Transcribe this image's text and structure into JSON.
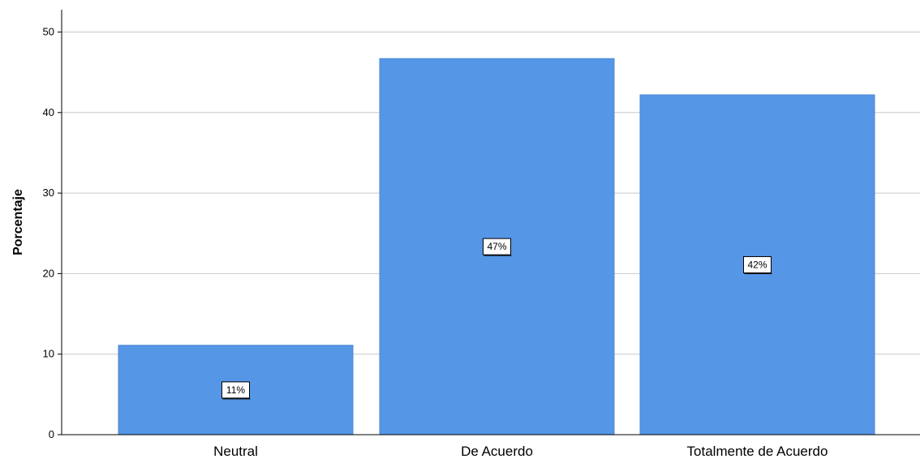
{
  "chart_data": {
    "type": "bar",
    "categories": [
      "Neutral",
      "De Acuerdo",
      "Totalmente de Acuerdo"
    ],
    "values": [
      11.1,
      46.7,
      42.2
    ],
    "data_labels": [
      "11%",
      "47%",
      "42%"
    ],
    "ylabel": "Porcentaje",
    "xlabel": "",
    "ylim": [
      0,
      52.5
    ],
    "yticks": [
      0,
      10,
      20,
      30,
      40,
      50
    ],
    "grid": true,
    "colors": {
      "bar": "#5596e6",
      "grid": "#c8c8c8",
      "axis": "#000000"
    }
  }
}
